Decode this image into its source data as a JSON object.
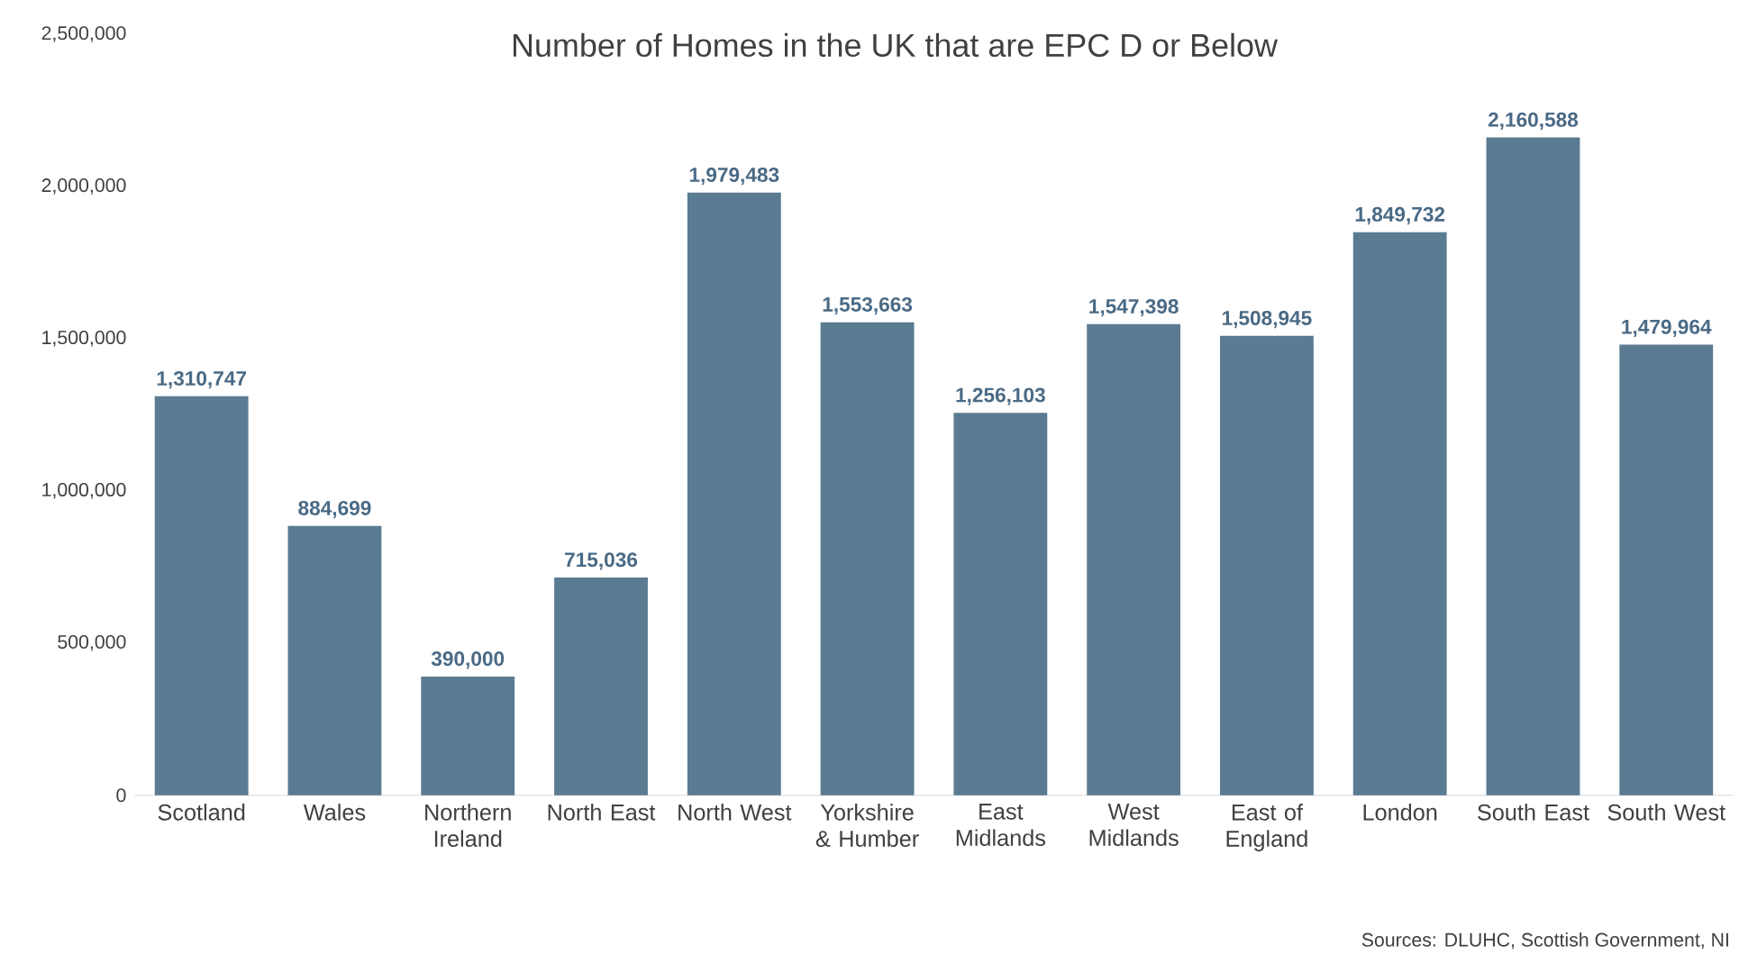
{
  "chart_data": {
    "type": "bar",
    "title": "Number of Homes in the UK that are EPC D or Below",
    "categories": [
      "Scotland",
      "Wales",
      "Northern Ireland",
      "North East",
      "North West",
      "Yorkshire & Humber",
      "East Midlands",
      "West Midlands",
      "East of England",
      "London",
      "South East",
      "South West"
    ],
    "values": [
      1310747,
      884699,
      390000,
      715036,
      1979483,
      1553663,
      1256103,
      1547398,
      1508945,
      1849732,
      2160588,
      1479964
    ],
    "value_labels": [
      "1,310,747",
      "884,699",
      "390,000",
      "715,036",
      "1,979,483",
      "1,553,663",
      "1,256,103",
      "1,547,398",
      "1,508,945",
      "1,849,732",
      "2,160,588",
      "1,479,964"
    ],
    "color": "#5a7b92",
    "ylim": [
      0,
      2500000
    ],
    "yticks": [
      0,
      {
        "value": 500000,
        "label": "500,000"
      },
      {
        "value": 1000000,
        "label": "1,000,000"
      },
      {
        "value": 1500000,
        "label": "1,500,000"
      },
      {
        "value": 2000000,
        "label": "2,000,000"
      },
      {
        "value": 2500000,
        "label": "2,500,000"
      }
    ],
    "grid": false,
    "annotations": [
      "Sources: DLUHC, Scottish Government, NI"
    ]
  }
}
